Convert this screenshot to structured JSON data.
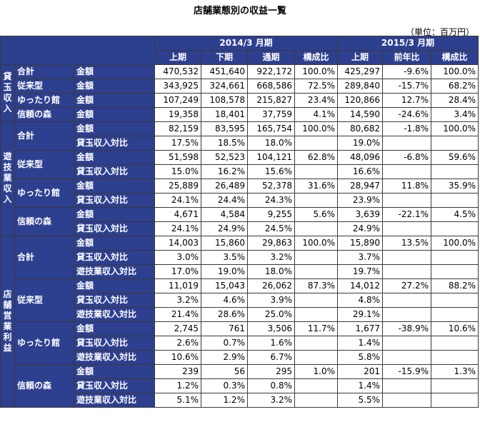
{
  "title": "店舗業態別の収益一覧",
  "unit": "（単位：百万円）",
  "periods": {
    "fy2014": "2014/3 月期",
    "fy2015": "2015/3 月期"
  },
  "columns": [
    "上期",
    "下期",
    "通期",
    "構成比",
    "上期",
    "前年比",
    "構成比"
  ],
  "groups": [
    "貸玉収入",
    "遊技業収入",
    "店舗営業利益"
  ],
  "segments": [
    "合計",
    "従来型",
    "ゆったり館",
    "信頼の森"
  ],
  "metrics": [
    "金額",
    "貸玉収入対比",
    "遊技業収入対比"
  ],
  "rows": [
    [
      "470,532",
      "451,640",
      "922,172",
      "100.0%",
      "425,297",
      "-9.6%",
      "100.0%"
    ],
    [
      "343,925",
      "324,661",
      "668,586",
      "72.5%",
      "289,840",
      "-15.7%",
      "68.2%"
    ],
    [
      "107,249",
      "108,578",
      "215,827",
      "23.4%",
      "120,866",
      "12.7%",
      "28.4%"
    ],
    [
      "19,358",
      "18,401",
      "37,759",
      "4.1%",
      "14,590",
      "-24.6%",
      "3.4%"
    ],
    [
      "82,159",
      "83,595",
      "165,754",
      "100.0%",
      "80,682",
      "-1.8%",
      "100.0%"
    ],
    [
      "17.5%",
      "18.5%",
      "18.0%",
      "",
      "19.0%",
      "",
      ""
    ],
    [
      "51,598",
      "52,523",
      "104,121",
      "62.8%",
      "48,096",
      "-6.8%",
      "59.6%"
    ],
    [
      "15.0%",
      "16.2%",
      "15.6%",
      "",
      "16.6%",
      "",
      ""
    ],
    [
      "25,889",
      "26,489",
      "52,378",
      "31.6%",
      "28,947",
      "11.8%",
      "35.9%"
    ],
    [
      "24.1%",
      "24.4%",
      "24.3%",
      "",
      "23.9%",
      "",
      ""
    ],
    [
      "4,671",
      "4,584",
      "9,255",
      "5.6%",
      "3,639",
      "-22.1%",
      "4.5%"
    ],
    [
      "24.1%",
      "24.9%",
      "24.5%",
      "",
      "24.9%",
      "",
      ""
    ],
    [
      "14,003",
      "15,860",
      "29,863",
      "100.0%",
      "15,890",
      "13.5%",
      "100.0%"
    ],
    [
      "3.0%",
      "3.5%",
      "3.2%",
      "",
      "3.7%",
      "",
      ""
    ],
    [
      "17.0%",
      "19.0%",
      "18.0%",
      "",
      "19.7%",
      "",
      ""
    ],
    [
      "11,019",
      "15,043",
      "26,062",
      "87.3%",
      "14,012",
      "27.2%",
      "88.2%"
    ],
    [
      "3.2%",
      "4.6%",
      "3.9%",
      "",
      "4.8%",
      "",
      ""
    ],
    [
      "21.4%",
      "28.6%",
      "25.0%",
      "",
      "29.1%",
      "",
      ""
    ],
    [
      "2,745",
      "761",
      "3,506",
      "11.7%",
      "1,677",
      "-38.9%",
      "10.6%"
    ],
    [
      "2.6%",
      "0.7%",
      "1.6%",
      "",
      "1.4%",
      "",
      ""
    ],
    [
      "10.6%",
      "2.9%",
      "6.7%",
      "",
      "5.8%",
      "",
      ""
    ],
    [
      "239",
      "56",
      "295",
      "1.0%",
      "201",
      "-15.9%",
      "1.3%"
    ],
    [
      "1.2%",
      "0.3%",
      "0.8%",
      "",
      "1.4%",
      "",
      ""
    ],
    [
      "5.1%",
      "1.2%",
      "3.2%",
      "",
      "5.5%",
      "",
      ""
    ]
  ]
}
